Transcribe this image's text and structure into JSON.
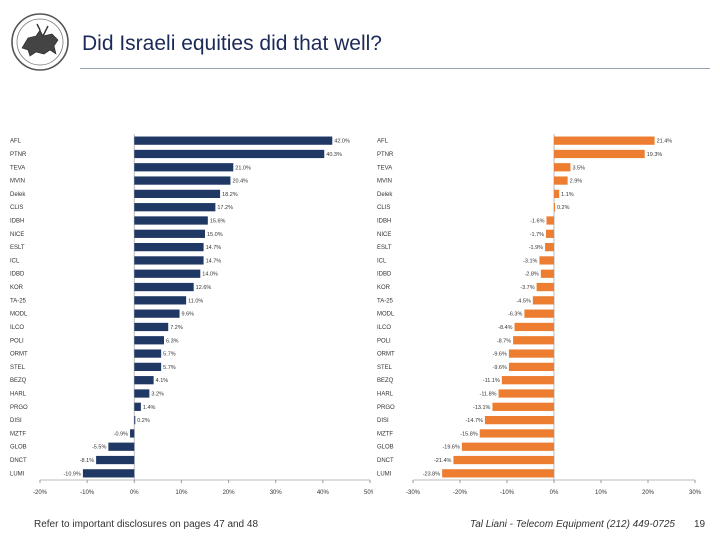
{
  "slide": {
    "title": "Did Israeli equities did that well?",
    "footer_left": "Refer to important disclosures on pages 47 and 48",
    "footer_right": "Tal Liani - Telecom Equipment (212) 449-0725",
    "page_number": "19"
  },
  "colors": {
    "left_bar": "#1f3864",
    "right_bar": "#ed7d31",
    "title": "#1b2a57"
  },
  "chart_data": [
    {
      "type": "bar",
      "orientation": "horizontal",
      "categories": [
        "AFL",
        "PTNR",
        "TEVA",
        "MVIN",
        "Delek",
        "CLIS",
        "IDBH",
        "NICE",
        "ESLT",
        "ICL",
        "IDBD",
        "KOR",
        "TA-25",
        "MODL",
        "ILCO",
        "POLI",
        "ORMT",
        "STEL",
        "BEZQ",
        "HARL",
        "PRGO",
        "DISI",
        "MZTF",
        "GLOB",
        "DNCT",
        "LUMI"
      ],
      "values": [
        42.0,
        40.3,
        21.0,
        20.4,
        18.2,
        17.2,
        15.6,
        15.0,
        14.7,
        14.7,
        14.0,
        12.6,
        11.0,
        9.6,
        7.2,
        6.3,
        5.7,
        5.7,
        4.1,
        3.2,
        1.4,
        0.2,
        -0.9,
        -5.5,
        -8.1,
        -10.9
      ],
      "labels": [
        "42.0%",
        "40.3%",
        "21.0%",
        "20.4%",
        "18.2%",
        "17.2%",
        "15.6%",
        "15.0%",
        "14.7%",
        "14.7%",
        "14.0%",
        "12.6%",
        "11.0%",
        "9.6%",
        "7.2%",
        "6.3%",
        "5.7%",
        "5.7%",
        "4.1%",
        "3.2%",
        "1.4%",
        "0.2%",
        "-0.9%",
        "-5.5%",
        "-8.1%",
        "-10.9%"
      ],
      "xlim": [
        -20,
        50
      ],
      "ticks": [
        -20,
        -10,
        0,
        10,
        20,
        30,
        40,
        50
      ],
      "tick_labels": [
        "-20%",
        "-10%",
        "0%",
        "10%",
        "20%",
        "30%",
        "40%",
        "50%"
      ]
    },
    {
      "type": "bar",
      "orientation": "horizontal",
      "categories": [
        "AFL",
        "PTNR",
        "TEVA",
        "MVIN",
        "Delek",
        "CLIS",
        "IDBH",
        "NICE",
        "ESLT",
        "ICL",
        "IDBD",
        "KOR",
        "TA-25",
        "MODL",
        "ILCO",
        "POLI",
        "ORMT",
        "STEL",
        "BEZQ",
        "HARL",
        "PRGO",
        "DISI",
        "MZTF",
        "GLOB",
        "DNCT",
        "LUMI"
      ],
      "values": [
        21.4,
        19.3,
        3.5,
        2.9,
        1.1,
        0.2,
        -1.6,
        -1.7,
        -1.9,
        -3.1,
        -2.8,
        -3.7,
        -4.5,
        -6.3,
        -8.4,
        -8.7,
        -9.6,
        -9.6,
        -11.1,
        -11.8,
        -13.1,
        -14.7,
        -15.8,
        -19.6,
        -21.4,
        -23.8
      ],
      "labels": [
        "21.4%",
        "19.3%",
        "3.5%",
        "2.9%",
        "1.1%",
        "0.2%",
        "-1.6%",
        "-1.7%",
        "-1.9%",
        "-3.1%",
        "-2.8%",
        "-3.7%",
        "-4.5%",
        "-6.3%",
        "-8.4%",
        "-8.7%",
        "-9.6%",
        "-9.6%",
        "-11.1%",
        "-11.8%",
        "-13.1%",
        "-14.7%",
        "-15.8%",
        "-19.6%",
        "-21.4%",
        "-23.8%"
      ],
      "xlim": [
        -30,
        30
      ],
      "ticks": [
        -30,
        -20,
        -10,
        0,
        10,
        20,
        30
      ],
      "tick_labels": [
        "-30%",
        "-20%",
        "-10%",
        "0%",
        "10%",
        "20%",
        "30%"
      ]
    }
  ]
}
